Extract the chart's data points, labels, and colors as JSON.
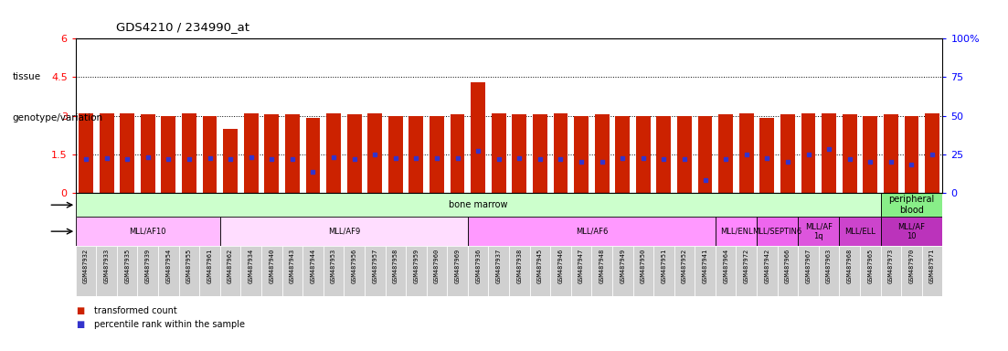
{
  "title": "GDS4210 / 234990_at",
  "samples": [
    "GSM487932",
    "GSM487933",
    "GSM487935",
    "GSM487939",
    "GSM487954",
    "GSM487955",
    "GSM487961",
    "GSM487962",
    "GSM487934",
    "GSM487940",
    "GSM487943",
    "GSM487944",
    "GSM487953",
    "GSM487956",
    "GSM487957",
    "GSM487958",
    "GSM487959",
    "GSM487960",
    "GSM487969",
    "GSM487936",
    "GSM487937",
    "GSM487938",
    "GSM487945",
    "GSM487946",
    "GSM487947",
    "GSM487948",
    "GSM487949",
    "GSM487950",
    "GSM487951",
    "GSM487952",
    "GSM487941",
    "GSM487964",
    "GSM487972",
    "GSM487942",
    "GSM487966",
    "GSM487967",
    "GSM487963",
    "GSM487968",
    "GSM487965",
    "GSM487973",
    "GSM487970",
    "GSM487971"
  ],
  "transformed_count": [
    3.1,
    3.1,
    3.1,
    3.05,
    3.0,
    3.1,
    3.0,
    2.5,
    3.1,
    3.05,
    3.05,
    2.9,
    3.1,
    3.05,
    3.1,
    3.0,
    3.0,
    3.0,
    3.05,
    4.3,
    3.1,
    3.05,
    3.05,
    3.1,
    3.0,
    3.05,
    3.0,
    3.0,
    3.0,
    3.0,
    3.0,
    3.05,
    3.1,
    2.9,
    3.05,
    3.1,
    3.1,
    3.05,
    3.0,
    3.05,
    3.0,
    3.1
  ],
  "percentile_rank": [
    1.3,
    1.35,
    1.3,
    1.4,
    1.3,
    1.3,
    1.35,
    1.3,
    1.4,
    1.3,
    1.3,
    0.8,
    1.4,
    1.3,
    1.5,
    1.35,
    1.35,
    1.35,
    1.35,
    1.65,
    1.3,
    1.35,
    1.3,
    1.3,
    1.2,
    1.2,
    1.35,
    1.35,
    1.3,
    1.3,
    0.5,
    1.3,
    1.5,
    1.35,
    1.2,
    1.5,
    1.7,
    1.3,
    1.2,
    1.2,
    1.1,
    1.5
  ],
  "ylim_left": [
    0,
    6
  ],
  "ylim_right": [
    0,
    100
  ],
  "yticks_left": [
    0,
    1.5,
    3.0,
    4.5,
    6
  ],
  "yticks_right": [
    0,
    25,
    50,
    75,
    100
  ],
  "ytick_labels_left": [
    "0",
    "1.5",
    "3",
    "4.5",
    "6"
  ],
  "ytick_labels_right": [
    "0",
    "25",
    "50",
    "75",
    "100%"
  ],
  "hlines": [
    1.5,
    3.0,
    4.5
  ],
  "bar_color": "#cc2200",
  "dot_color": "#3333cc",
  "bar_width": 0.7,
  "tissue_groups": [
    {
      "label": "bone marrow",
      "start": 0,
      "end": 39,
      "color": "#ccffcc"
    },
    {
      "label": "peripheral\nblood",
      "start": 39,
      "end": 42,
      "color": "#88ee88"
    }
  ],
  "genotype_groups": [
    {
      "label": "MLL/AF10",
      "start": 0,
      "end": 7,
      "color": "#ffbbff"
    },
    {
      "label": "MLL/AF9",
      "start": 7,
      "end": 19,
      "color": "#ffddff"
    },
    {
      "label": "MLL/AF6",
      "start": 19,
      "end": 31,
      "color": "#ff99ff"
    },
    {
      "label": "MLL/ENL",
      "start": 31,
      "end": 33,
      "color": "#ff88ff"
    },
    {
      "label": "MLL/SEPTIN6",
      "start": 33,
      "end": 35,
      "color": "#ee66ee"
    },
    {
      "label": "MLL/AF\n1q",
      "start": 35,
      "end": 37,
      "color": "#dd55dd"
    },
    {
      "label": "MLL/ELL",
      "start": 37,
      "end": 39,
      "color": "#cc44cc"
    },
    {
      "label": "MLL/AF\n10",
      "start": 39,
      "end": 42,
      "color": "#bb33bb"
    }
  ],
  "legend_items": [
    {
      "label": "transformed count",
      "color": "#cc2200"
    },
    {
      "label": "percentile rank within the sample",
      "color": "#3333cc"
    }
  ],
  "tissue_label": "tissue",
  "genotype_label": "genotype/variation",
  "background_color": "#ffffff",
  "tick_bg_color": "#dddddd"
}
